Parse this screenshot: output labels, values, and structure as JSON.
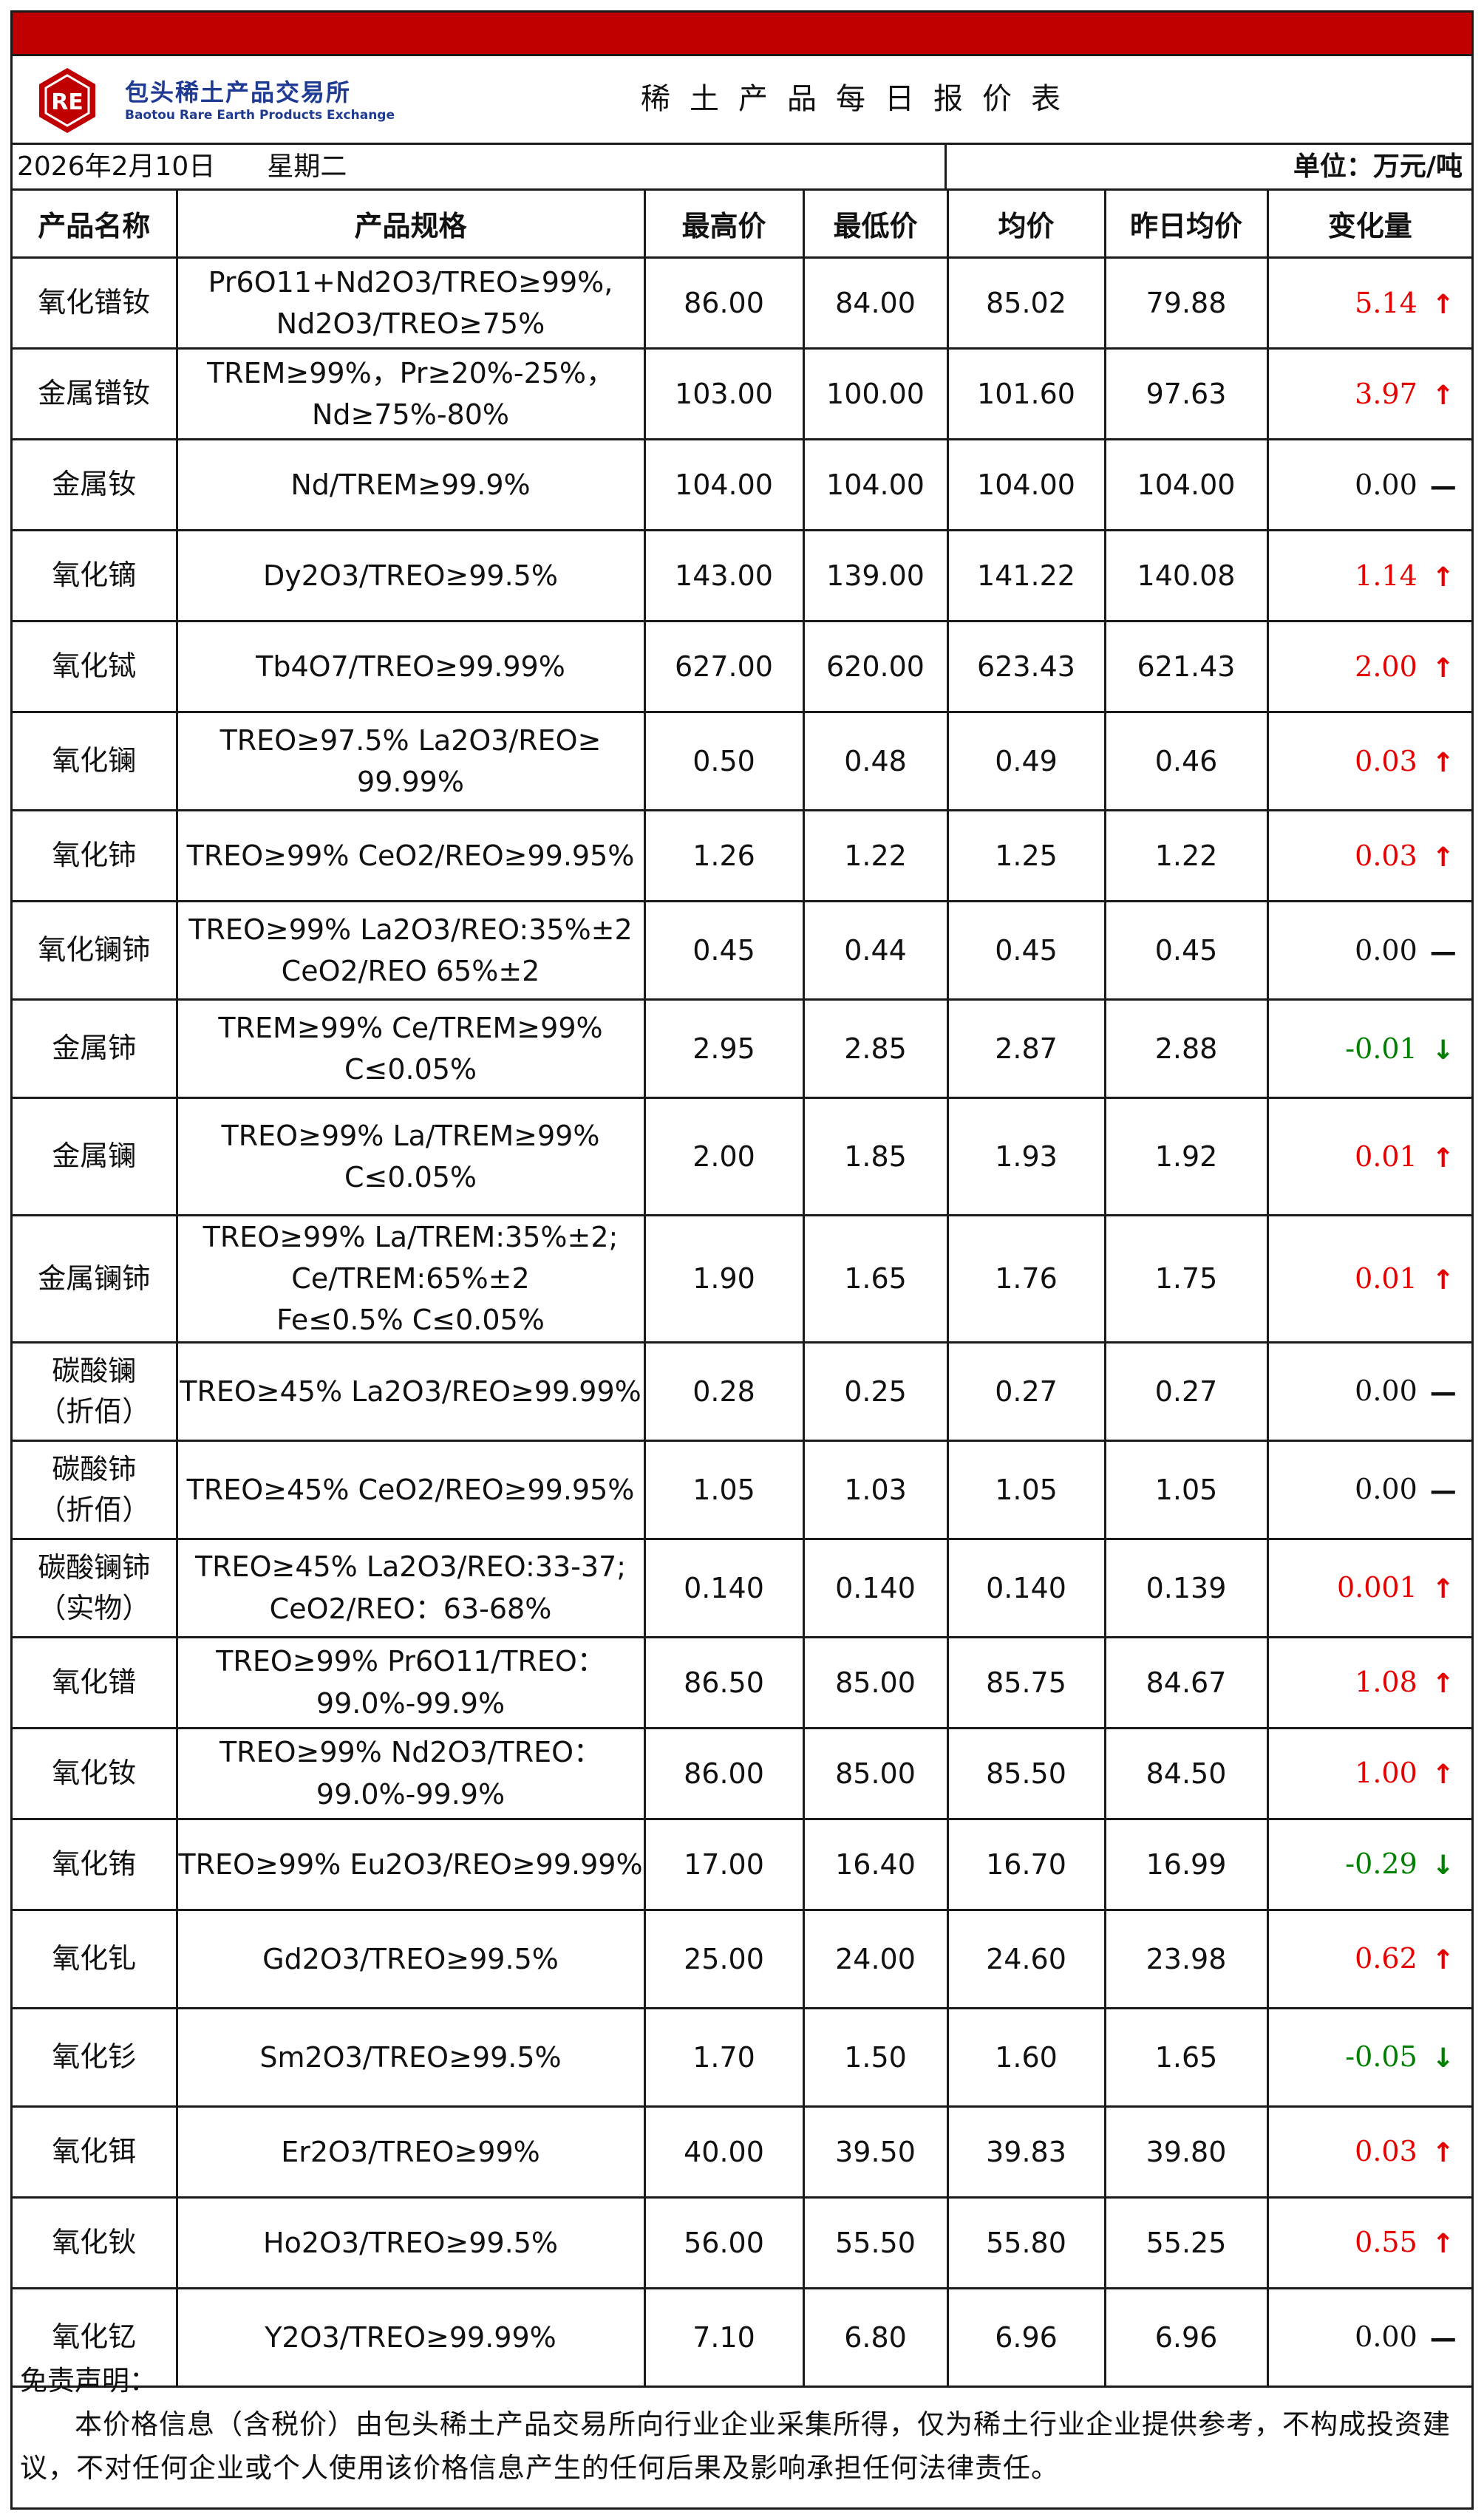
{
  "header": {
    "logo_mark": "RE",
    "logo_cn": "包头稀土产品交易所",
    "logo_en": "Baotou Rare Earth Products Exchange",
    "title": "稀土产品每日报价表"
  },
  "info": {
    "date": "2026年2月10日",
    "weekday": "星期二",
    "unit": "单位：万元/吨"
  },
  "table": {
    "headers": [
      "产品名称",
      "产品规格",
      "最高价",
      "最低价",
      "均价",
      "昨日均价",
      "变化量"
    ],
    "rows": [
      {
        "name": [
          "氧化镨钕"
        ],
        "spec": [
          "Pr6O11+Nd2O3/TREO≥99%,",
          "Nd2O3/TREO≥75%"
        ],
        "high": "86.00",
        "low": "84.00",
        "avg": "85.02",
        "prev": "79.88",
        "change": "5.14",
        "dir": "up"
      },
      {
        "name": [
          "金属镨钕"
        ],
        "spec": [
          "TREM≥99%，Pr≥20%-25%，",
          "Nd≥75%-80%"
        ],
        "high": "103.00",
        "low": "100.00",
        "avg": "101.60",
        "prev": "97.63",
        "change": "3.97",
        "dir": "up"
      },
      {
        "name": [
          "金属钕"
        ],
        "spec": [
          "Nd/TREM≥99.9%"
        ],
        "high": "104.00",
        "low": "104.00",
        "avg": "104.00",
        "prev": "104.00",
        "change": "0.00",
        "dir": "flat"
      },
      {
        "name": [
          "氧化镝"
        ],
        "spec": [
          "Dy2O3/TREO≥99.5%"
        ],
        "high": "143.00",
        "low": "139.00",
        "avg": "141.22",
        "prev": "140.08",
        "change": "1.14",
        "dir": "up"
      },
      {
        "name": [
          "氧化铽"
        ],
        "spec": [
          "Tb4O7/TREO≥99.99%"
        ],
        "high": "627.00",
        "low": "620.00",
        "avg": "623.43",
        "prev": "621.43",
        "change": "2.00",
        "dir": "up"
      },
      {
        "name": [
          "氧化镧"
        ],
        "spec": [
          "TREO≥97.5%  La2O3/REO≥",
          "99.99%"
        ],
        "high": "0.50",
        "low": "0.48",
        "avg": "0.49",
        "prev": "0.46",
        "change": "0.03",
        "dir": "up"
      },
      {
        "name": [
          "氧化铈"
        ],
        "spec": [
          "TREO≥99%   CeO2/REO≥99.95%"
        ],
        "high": "1.26",
        "low": "1.22",
        "avg": "1.25",
        "prev": "1.22",
        "change": "0.03",
        "dir": "up"
      },
      {
        "name": [
          "氧化镧铈"
        ],
        "spec": [
          "TREO≥99%   La2O3/REO:35%±2",
          "CeO2/REO 65%±2"
        ],
        "high": "0.45",
        "low": "0.44",
        "avg": "0.45",
        "prev": "0.45",
        "change": "0.00",
        "dir": "flat"
      },
      {
        "name": [
          "金属铈"
        ],
        "spec": [
          "TREM≥99%  Ce/TREM≥99%",
          "C≤0.05%"
        ],
        "high": "2.95",
        "low": "2.85",
        "avg": "2.87",
        "prev": "2.88",
        "change": "-0.01",
        "dir": "down"
      },
      {
        "name": [
          "金属镧"
        ],
        "spec": [
          "TREO≥99%  La/TREM≥99%",
          "C≤0.05%"
        ],
        "high": "2.00",
        "low": "1.85",
        "avg": "1.93",
        "prev": "1.92",
        "change": "0.01",
        "dir": "up"
      },
      {
        "name": [
          "金属镧铈"
        ],
        "spec": [
          "TREO≥99%  La/TREM:35%±2;",
          "Ce/TREM:65%±2",
          "Fe≤0.5% C≤0.05%"
        ],
        "high": "1.90",
        "low": "1.65",
        "avg": "1.76",
        "prev": "1.75",
        "change": "0.01",
        "dir": "up"
      },
      {
        "name": [
          "碳酸镧",
          "（折佰）"
        ],
        "spec": [
          "TREO≥45% La2O3/REO≥99.99%"
        ],
        "high": "0.28",
        "low": "0.25",
        "avg": "0.27",
        "prev": "0.27",
        "change": "0.00",
        "dir": "flat"
      },
      {
        "name": [
          "碳酸铈",
          "（折佰）"
        ],
        "spec": [
          "TREO≥45% CeO2/REO≥99.95%"
        ],
        "high": "1.05",
        "low": "1.03",
        "avg": "1.05",
        "prev": "1.05",
        "change": "0.00",
        "dir": "flat"
      },
      {
        "name": [
          "碳酸镧铈",
          "（实物）"
        ],
        "spec": [
          "TREO≥45% La2O3/REO:33-37;",
          "CeO2/REO：63-68%"
        ],
        "high": "0.140",
        "low": "0.140",
        "avg": "0.140",
        "prev": "0.139",
        "change": "0.001",
        "dir": "up"
      },
      {
        "name": [
          "氧化镨"
        ],
        "spec": [
          "TREO≥99%    Pr6O11/TREO：",
          "99.0%-99.9%"
        ],
        "high": "86.50",
        "low": "85.00",
        "avg": "85.75",
        "prev": "84.67",
        "change": "1.08",
        "dir": "up"
      },
      {
        "name": [
          "氧化钕"
        ],
        "spec": [
          "TREO≥99%   Nd2O3/TREO：",
          "99.0%-99.9%"
        ],
        "high": "86.00",
        "low": "85.00",
        "avg": "85.50",
        "prev": "84.50",
        "change": "1.00",
        "dir": "up"
      },
      {
        "name": [
          "氧化铕"
        ],
        "spec": [
          "TREO≥99%  Eu2O3/REO≥99.99%"
        ],
        "high": "17.00",
        "low": "16.40",
        "avg": "16.70",
        "prev": "16.99",
        "change": "-0.29",
        "dir": "down"
      },
      {
        "name": [
          "氧化钆"
        ],
        "spec": [
          "Gd2O3/TREO≥99.5%"
        ],
        "high": "25.00",
        "low": "24.00",
        "avg": "24.60",
        "prev": "23.98",
        "change": "0.62",
        "dir": "up"
      },
      {
        "name": [
          "氧化钐"
        ],
        "spec": [
          "Sm2O3/TREO≥99.5%"
        ],
        "high": "1.70",
        "low": "1.50",
        "avg": "1.60",
        "prev": "1.65",
        "change": "-0.05",
        "dir": "down"
      },
      {
        "name": [
          "氧化铒"
        ],
        "spec": [
          "Er2O3/TREO≥99%"
        ],
        "high": "40.00",
        "low": "39.50",
        "avg": "39.83",
        "prev": "39.80",
        "change": "0.03",
        "dir": "up"
      },
      {
        "name": [
          "氧化钬"
        ],
        "spec": [
          "Ho2O3/TREO≥99.5%"
        ],
        "high": "56.00",
        "low": "55.50",
        "avg": "55.80",
        "prev": "55.25",
        "change": "0.55",
        "dir": "up"
      },
      {
        "name": [
          "氧化钇"
        ],
        "spec": [
          "Y2O3/TREO≥99.99%"
        ],
        "high": "7.10",
        "low": "6.80",
        "avg": "6.96",
        "prev": "6.96",
        "change": "0.00",
        "dir": "flat"
      }
    ]
  },
  "disclaimer": {
    "title": "免责声明：",
    "body": "本价格信息（含税价）由包头稀土产品交易所向行业企业采集所得，仅为稀土行业企业提供参考，不构成投资建议，不对任何企业或个人使用该价格信息产生的任何后果及影响承担任何法律责任。"
  },
  "colors": {
    "brand_red": "#c00000",
    "logo_blue": "#1f3a93",
    "up": "#e60000",
    "down": "#008000",
    "flat": "#111111"
  },
  "icons": {
    "up": "arrow-up-icon",
    "down": "arrow-down-icon",
    "flat": "dash-icon"
  }
}
